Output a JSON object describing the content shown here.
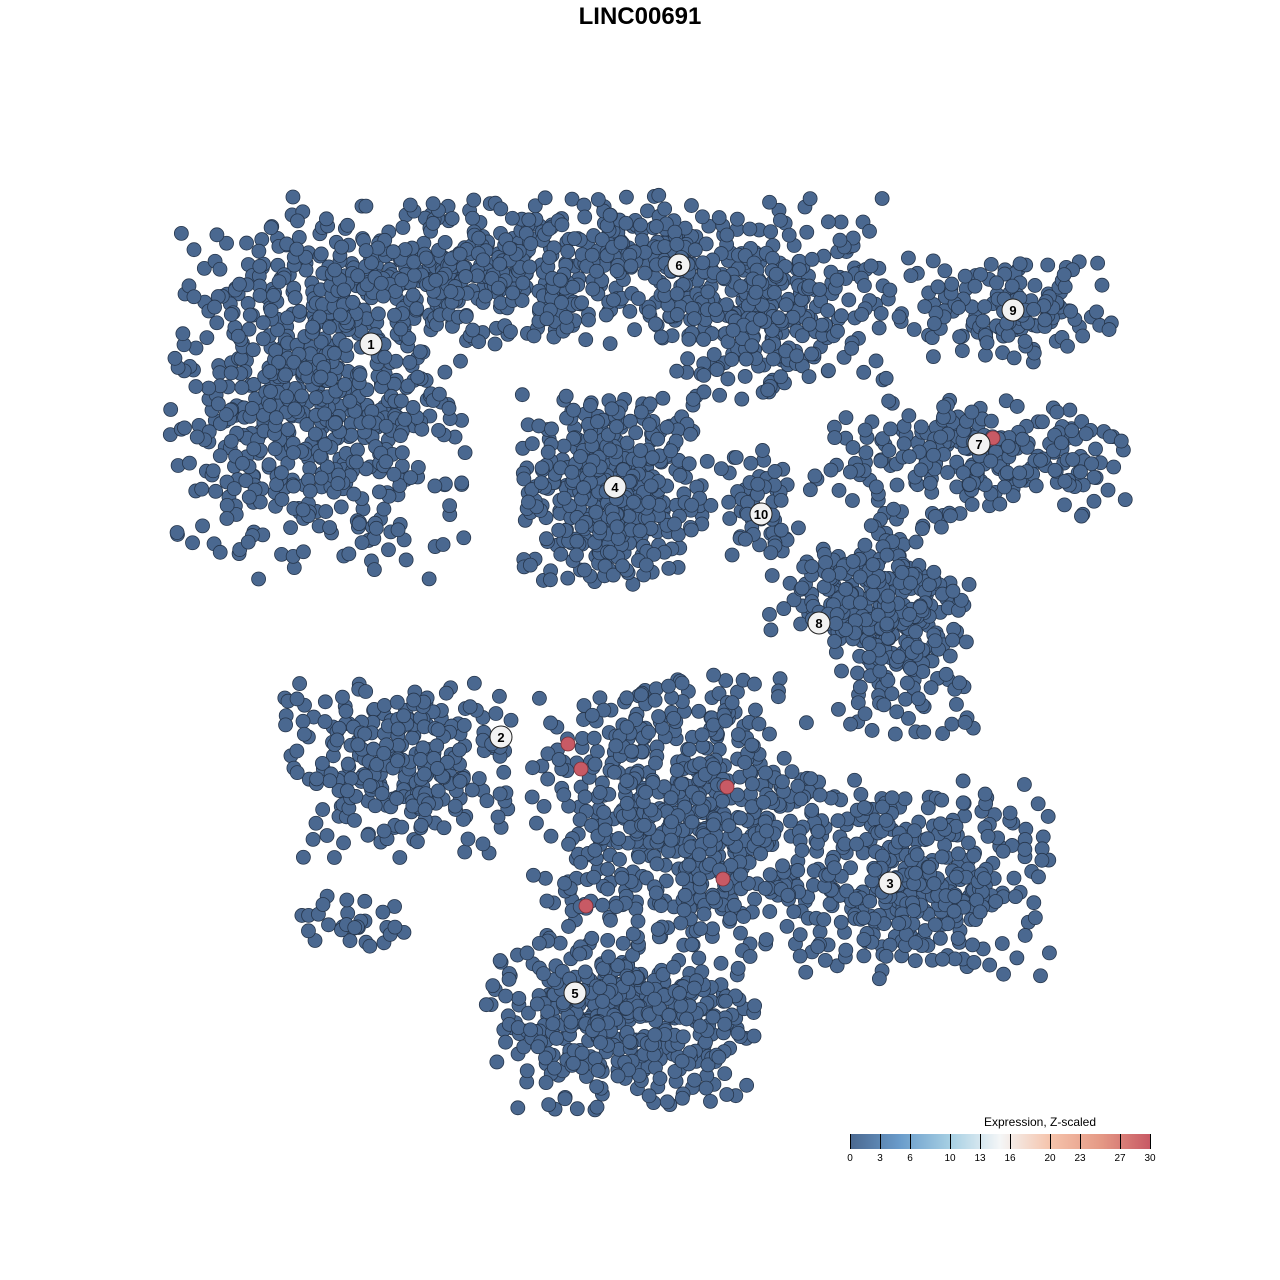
{
  "chart_data": {
    "type": "scatter",
    "title": "LINC00691",
    "xlabel": "",
    "ylabel": "",
    "grid": false,
    "axes_visible": false,
    "point_color_low": "#4a6890",
    "point_color_high": "#c85a65",
    "clusters": [
      {
        "label": "1",
        "label_pos": [
          -26.9,
          29.6
        ],
        "blobs": [
          {
            "center": [
              -32,
              24
            ],
            "spread": [
              10,
              12
            ],
            "n": 700
          }
        ]
      },
      {
        "label": "2",
        "label_pos": [
          -13.9,
          -9.7
        ],
        "blobs": [
          {
            "center": [
              -24,
              -13
            ],
            "spread": [
              8,
              6
            ],
            "n": 300
          },
          {
            "center": [
              -29,
              -28
            ],
            "spread": [
              4,
              2
            ],
            "n": 30
          }
        ]
      },
      {
        "label": "3",
        "label_pos": [
          25.0,
          -24.3
        ],
        "blobs": [
          {
            "center": [
              26,
              -24
            ],
            "spread": [
              10,
              7
            ],
            "n": 400
          }
        ]
      },
      {
        "label": "4",
        "label_pos": [
          -2.5,
          15.3
        ],
        "blobs": [
          {
            "center": [
              -2.5,
              15
            ],
            "spread": [
              6.5,
              6.5
            ],
            "n": 450
          }
        ]
      },
      {
        "label": "5",
        "label_pos": [
          -6.5,
          -35.3
        ],
        "blobs": [
          {
            "center": [
              -2,
              -38
            ],
            "spread": [
              9,
              6
            ],
            "n": 450
          },
          {
            "center": [
              4,
              -17
            ],
            "spread": [
              10,
              9
            ],
            "n": 600
          }
        ]
      },
      {
        "label": "6",
        "label_pos": [
          3.9,
          37.5
        ],
        "blobs": [
          {
            "center": [
              -8,
              37
            ],
            "spread": [
              22,
              5
            ],
            "n": 700
          },
          {
            "center": [
              13,
              31
            ],
            "spread": [
              8,
              5
            ],
            "n": 200
          }
        ]
      },
      {
        "label": "7",
        "label_pos": [
          33.9,
          19.6
        ],
        "blobs": [
          {
            "center": [
              33,
              18
            ],
            "spread": [
              11,
              4
            ],
            "n": 250
          }
        ]
      },
      {
        "label": "8",
        "label_pos": [
          17.9,
          1.7
        ],
        "blobs": [
          {
            "center": [
              26,
              2
            ],
            "spread": [
              5,
              8
            ],
            "n": 250
          },
          {
            "center": [
              20,
              5
            ],
            "spread": [
              5,
              3
            ],
            "n": 100
          }
        ]
      },
      {
        "label": "9",
        "label_pos": [
          37.3,
          33.0
        ],
        "blobs": [
          {
            "center": [
              36,
              33
            ],
            "spread": [
              8,
              3.5
            ],
            "n": 150
          }
        ]
      },
      {
        "label": "10",
        "label_pos": [
          12.1,
          12.6
        ],
        "blobs": [
          {
            "center": [
              12,
              13
            ],
            "spread": [
              3,
              4
            ],
            "n": 60
          }
        ]
      }
    ],
    "high_expression_points": [
      {
        "x": -7.2,
        "y": -10.4,
        "value": 30
      },
      {
        "x": -5.9,
        "y": -12.9,
        "value": 30
      },
      {
        "x": 8.7,
        "y": -14.7,
        "value": 30
      },
      {
        "x": 8.3,
        "y": -23.9,
        "value": 30
      },
      {
        "x": -5.4,
        "y": -26.6,
        "value": 30
      },
      {
        "x": 35.3,
        "y": 20.2,
        "value": 30
      }
    ],
    "legend": {
      "title": "Expression, Z-scaled",
      "position": "bottom-right",
      "ticks": [
        "0",
        "3",
        "6",
        "10",
        "13",
        "16",
        "20",
        "23",
        "27",
        "30"
      ],
      "tick_values": [
        0,
        3,
        6,
        10,
        13,
        16,
        20,
        23,
        27,
        30
      ],
      "colors": [
        "#4a6890",
        "#6a9ccb",
        "#a6cfe3",
        "#f4f6f7",
        "#f5c4ac",
        "#e59a86",
        "#c85a65"
      ]
    }
  }
}
